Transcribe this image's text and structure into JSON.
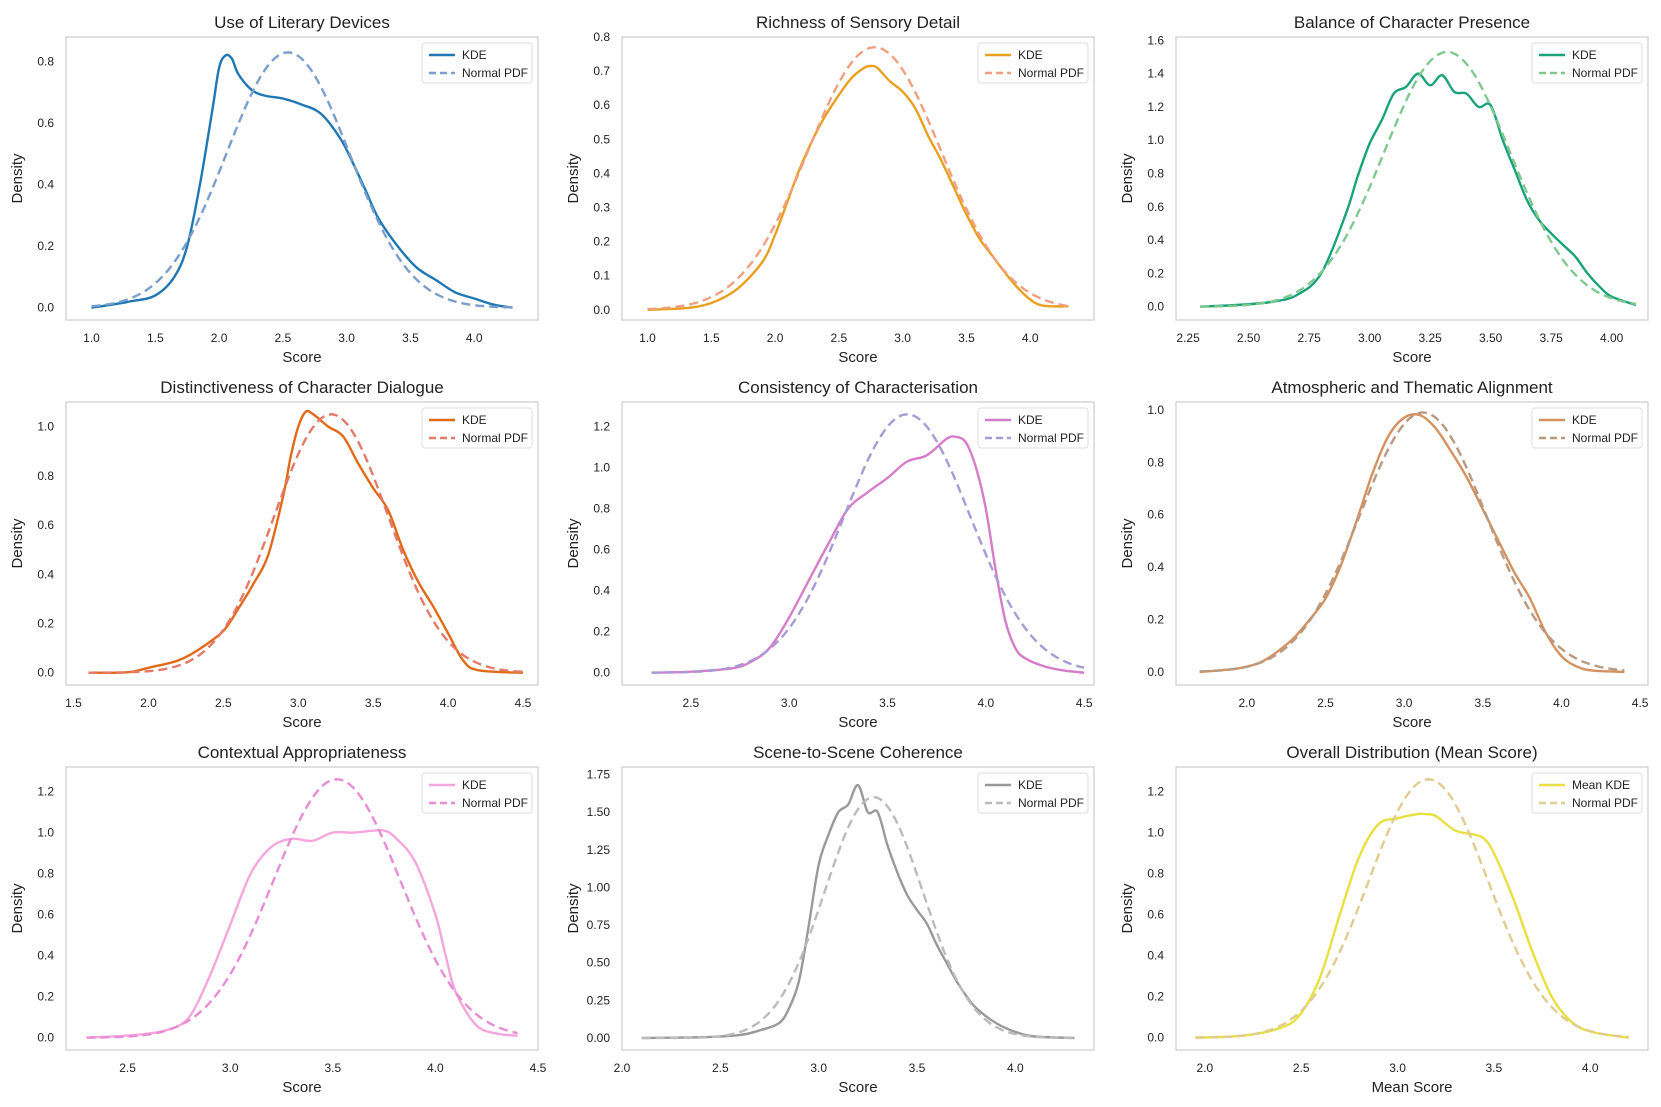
{
  "figure": {
    "xlabel": "Score"
  },
  "chart_data": [
    {
      "type": "line",
      "title": "Use of Literary Devices",
      "xlabel": "Score",
      "ylabel": "Density",
      "xlim": [
        0.8,
        4.5
      ],
      "ylim": [
        -0.04,
        0.88
      ],
      "xticks": [
        1.0,
        1.5,
        2.0,
        2.5,
        3.0,
        3.5,
        4.0
      ],
      "xtick_labels": [
        "1.0",
        "1.5",
        "2.0",
        "2.5",
        "3.0",
        "3.5",
        "4.0"
      ],
      "yticks": [
        0,
        0.2,
        0.4,
        0.6,
        0.8
      ],
      "ytick_labels": [
        "0.0",
        "0.2",
        "0.4",
        "0.6",
        "0.8"
      ],
      "series": [
        {
          "name": "KDE",
          "style": "solid",
          "color": "#1f77b4",
          "x": [
            1.0,
            1.3,
            1.5,
            1.65,
            1.75,
            1.85,
            1.95,
            2.0,
            2.05,
            2.1,
            2.15,
            2.25,
            2.35,
            2.5,
            2.65,
            2.8,
            2.95,
            3.05,
            3.15,
            3.25,
            3.4,
            3.55,
            3.7,
            3.85,
            4.0,
            4.15,
            4.3
          ],
          "y": [
            0.0,
            0.02,
            0.04,
            0.1,
            0.2,
            0.4,
            0.65,
            0.78,
            0.82,
            0.81,
            0.76,
            0.71,
            0.69,
            0.68,
            0.66,
            0.63,
            0.55,
            0.47,
            0.38,
            0.29,
            0.2,
            0.13,
            0.09,
            0.05,
            0.03,
            0.01,
            0.0
          ]
        },
        {
          "name": "Normal PDF",
          "style": "dashed",
          "color": "#7b9fcc",
          "mu": 2.54,
          "sigma": 0.48,
          "peak": 0.83,
          "xrange": [
            1.0,
            4.3
          ]
        }
      ]
    },
    {
      "type": "line",
      "title": "Richness of Sensory Detail",
      "xlabel": "Score",
      "ylabel": "Density",
      "xlim": [
        0.8,
        4.5
      ],
      "ylim": [
        -0.03,
        0.8
      ],
      "xticks": [
        1.0,
        1.5,
        2.0,
        2.5,
        3.0,
        3.5,
        4.0
      ],
      "xtick_labels": [
        "1.0",
        "1.5",
        "2.0",
        "2.5",
        "3.0",
        "3.5",
        "4.0"
      ],
      "yticks": [
        0,
        0.1,
        0.2,
        0.3,
        0.4,
        0.5,
        0.6,
        0.7,
        0.8
      ],
      "ytick_labels": [
        "0.0",
        "0.1",
        "0.2",
        "0.3",
        "0.4",
        "0.5",
        "0.6",
        "0.7",
        "0.8"
      ],
      "series": [
        {
          "name": "KDE",
          "style": "solid",
          "color": "#e8a020",
          "x": [
            1.0,
            1.3,
            1.5,
            1.7,
            1.9,
            2.0,
            2.1,
            2.2,
            2.35,
            2.5,
            2.6,
            2.7,
            2.75,
            2.8,
            2.9,
            3.0,
            3.1,
            3.2,
            3.3,
            3.4,
            3.5,
            3.6,
            3.7,
            3.8,
            3.9,
            4.0,
            4.1,
            4.3
          ],
          "y": [
            0.0,
            0.005,
            0.02,
            0.06,
            0.14,
            0.22,
            0.32,
            0.42,
            0.54,
            0.63,
            0.68,
            0.71,
            0.715,
            0.71,
            0.67,
            0.64,
            0.59,
            0.51,
            0.44,
            0.36,
            0.28,
            0.21,
            0.16,
            0.11,
            0.065,
            0.03,
            0.012,
            0.01
          ]
        },
        {
          "name": "Normal PDF",
          "style": "dashed",
          "color": "#f0a080",
          "mu": 2.78,
          "sigma": 0.52,
          "peak": 0.77,
          "xrange": [
            1.0,
            4.3
          ]
        }
      ]
    },
    {
      "type": "line",
      "title": "Balance of Character Presence",
      "xlabel": "Score",
      "ylabel": "Density",
      "xlim": [
        2.2,
        4.15
      ],
      "ylim": [
        -0.08,
        1.62
      ],
      "xticks": [
        2.25,
        2.5,
        2.75,
        3.0,
        3.25,
        3.5,
        3.75,
        4.0
      ],
      "xtick_labels": [
        "2.25",
        "2.50",
        "2.75",
        "3.00",
        "3.25",
        "3.50",
        "3.75",
        "4.00"
      ],
      "yticks": [
        0,
        0.2,
        0.4,
        0.6,
        0.8,
        1.0,
        1.2,
        1.4,
        1.6
      ],
      "ytick_labels": [
        "0.0",
        "0.2",
        "0.4",
        "0.6",
        "0.8",
        "1.0",
        "1.2",
        "1.4",
        "1.6"
      ],
      "series": [
        {
          "name": "KDE",
          "style": "solid",
          "color": "#1aa37a",
          "x": [
            2.3,
            2.45,
            2.6,
            2.7,
            2.8,
            2.9,
            2.95,
            3.0,
            3.05,
            3.1,
            3.15,
            3.2,
            3.25,
            3.3,
            3.35,
            3.4,
            3.45,
            3.5,
            3.55,
            3.6,
            3.65,
            3.7,
            3.75,
            3.8,
            3.85,
            3.9,
            3.95,
            4.0,
            4.1
          ],
          "y": [
            0.0,
            0.01,
            0.03,
            0.07,
            0.2,
            0.55,
            0.78,
            0.98,
            1.12,
            1.28,
            1.32,
            1.4,
            1.33,
            1.39,
            1.29,
            1.28,
            1.2,
            1.21,
            1.0,
            0.82,
            0.64,
            0.52,
            0.44,
            0.37,
            0.3,
            0.2,
            0.12,
            0.06,
            0.01
          ]
        },
        {
          "name": "Normal PDF",
          "style": "dashed",
          "color": "#80c890",
          "mu": 3.32,
          "sigma": 0.26,
          "peak": 1.53,
          "xrange": [
            2.3,
            4.1
          ]
        }
      ]
    },
    {
      "type": "line",
      "title": "Distinctiveness of Character Dialogue",
      "xlabel": "Score",
      "ylabel": "Density",
      "xlim": [
        1.45,
        4.6
      ],
      "ylim": [
        -0.05,
        1.1
      ],
      "xticks": [
        1.5,
        2.0,
        2.5,
        3.0,
        3.5,
        4.0,
        4.5
      ],
      "xtick_labels": [
        "1.5",
        "2.0",
        "2.5",
        "3.0",
        "3.5",
        "4.0",
        "4.5"
      ],
      "yticks": [
        0,
        0.2,
        0.4,
        0.6,
        0.8,
        1.0
      ],
      "ytick_labels": [
        "0.0",
        "0.2",
        "0.4",
        "0.6",
        "0.8",
        "1.0"
      ],
      "series": [
        {
          "name": "KDE",
          "style": "solid",
          "color": "#e06a18",
          "x": [
            1.6,
            1.8,
            1.9,
            2.0,
            2.2,
            2.35,
            2.5,
            2.6,
            2.7,
            2.8,
            2.9,
            2.95,
            3.0,
            3.05,
            3.1,
            3.2,
            3.3,
            3.4,
            3.5,
            3.6,
            3.7,
            3.8,
            3.9,
            4.0,
            4.1,
            4.2,
            4.5
          ],
          "y": [
            0.0,
            0.0,
            0.005,
            0.02,
            0.05,
            0.1,
            0.17,
            0.26,
            0.36,
            0.48,
            0.72,
            0.88,
            1.0,
            1.06,
            1.05,
            1.0,
            0.96,
            0.85,
            0.75,
            0.66,
            0.5,
            0.37,
            0.27,
            0.16,
            0.05,
            0.01,
            0.0
          ]
        },
        {
          "name": "Normal PDF",
          "style": "dashed",
          "color": "#e37a6a",
          "mu": 3.22,
          "sigma": 0.38,
          "peak": 1.05,
          "xrange": [
            1.6,
            4.5
          ]
        }
      ]
    },
    {
      "type": "line",
      "title": "Consistency of Characterisation",
      "xlabel": "Score",
      "ylabel": "Density",
      "xlim": [
        2.15,
        4.55
      ],
      "ylim": [
        -0.06,
        1.32
      ],
      "xticks": [
        2.5,
        3.0,
        3.5,
        4.0,
        4.5
      ],
      "xtick_labels": [
        "2.5",
        "3.0",
        "3.5",
        "4.0",
        "4.5"
      ],
      "yticks": [
        0,
        0.2,
        0.4,
        0.6,
        0.8,
        1.0,
        1.2
      ],
      "ytick_labels": [
        "0.0",
        "0.2",
        "0.4",
        "0.6",
        "0.8",
        "1.0",
        "1.2"
      ],
      "series": [
        {
          "name": "KDE",
          "style": "solid",
          "color": "#d67cc8",
          "x": [
            2.3,
            2.5,
            2.7,
            2.8,
            2.9,
            3.0,
            3.1,
            3.2,
            3.3,
            3.4,
            3.5,
            3.6,
            3.7,
            3.8,
            3.85,
            3.9,
            3.95,
            4.0,
            4.05,
            4.1,
            4.15,
            4.2,
            4.3,
            4.4,
            4.5
          ],
          "y": [
            0.0,
            0.005,
            0.02,
            0.05,
            0.12,
            0.27,
            0.45,
            0.63,
            0.8,
            0.88,
            0.95,
            1.03,
            1.06,
            1.14,
            1.15,
            1.12,
            1.0,
            0.8,
            0.5,
            0.25,
            0.12,
            0.07,
            0.03,
            0.01,
            0.0
          ]
        },
        {
          "name": "Normal PDF",
          "style": "dashed",
          "color": "#a89ad4",
          "mu": 3.6,
          "sigma": 0.32,
          "peak": 1.26,
          "xrange": [
            2.3,
            4.5
          ]
        }
      ]
    },
    {
      "type": "line",
      "title": "Atmospheric and Thematic Alignment",
      "xlabel": "Score",
      "ylabel": "Density",
      "xlim": [
        1.55,
        4.55
      ],
      "ylim": [
        -0.05,
        1.03
      ],
      "xticks": [
        2.0,
        2.5,
        3.0,
        3.5,
        4.0,
        4.5
      ],
      "xtick_labels": [
        "2.0",
        "2.5",
        "3.0",
        "3.5",
        "4.0",
        "4.5"
      ],
      "yticks": [
        0,
        0.2,
        0.4,
        0.6,
        0.8,
        1.0
      ],
      "ytick_labels": [
        "0.0",
        "0.2",
        "0.4",
        "0.6",
        "0.8",
        "1.0"
      ],
      "series": [
        {
          "name": "KDE",
          "style": "solid",
          "color": "#d49260",
          "x": [
            1.7,
            1.9,
            2.0,
            2.1,
            2.2,
            2.3,
            2.4,
            2.5,
            2.6,
            2.7,
            2.8,
            2.9,
            3.0,
            3.1,
            3.2,
            3.3,
            3.4,
            3.5,
            3.6,
            3.7,
            3.8,
            3.9,
            4.0,
            4.1,
            4.2,
            4.4
          ],
          "y": [
            0.0,
            0.01,
            0.02,
            0.04,
            0.08,
            0.13,
            0.2,
            0.28,
            0.41,
            0.58,
            0.76,
            0.9,
            0.97,
            0.98,
            0.93,
            0.84,
            0.74,
            0.62,
            0.5,
            0.38,
            0.28,
            0.15,
            0.06,
            0.02,
            0.005,
            0.0
          ]
        },
        {
          "name": "Normal PDF",
          "style": "dashed",
          "color": "#b89a80",
          "mu": 3.12,
          "sigma": 0.4,
          "peak": 0.99,
          "xrange": [
            1.7,
            4.4
          ]
        }
      ]
    },
    {
      "type": "line",
      "title": "Contextual Appropriateness",
      "xlabel": "Score",
      "ylabel": "Density",
      "xlim": [
        2.2,
        4.5
      ],
      "ylim": [
        -0.06,
        1.32
      ],
      "xticks": [
        2.5,
        3.0,
        3.5,
        4.0,
        4.5
      ],
      "xtick_labels": [
        "2.5",
        "3.0",
        "3.5",
        "4.0",
        "4.5"
      ],
      "yticks": [
        0,
        0.2,
        0.4,
        0.6,
        0.8,
        1.0,
        1.2
      ],
      "ytick_labels": [
        "0.0",
        "0.2",
        "0.4",
        "0.6",
        "0.8",
        "1.0",
        "1.2"
      ],
      "series": [
        {
          "name": "KDE",
          "style": "solid",
          "color": "#f5a6dc",
          "x": [
            2.3,
            2.5,
            2.6,
            2.7,
            2.8,
            2.9,
            3.0,
            3.1,
            3.2,
            3.3,
            3.4,
            3.5,
            3.6,
            3.7,
            3.75,
            3.8,
            3.9,
            4.0,
            4.05,
            4.1,
            4.2,
            4.3,
            4.4
          ],
          "y": [
            0.0,
            0.01,
            0.02,
            0.04,
            0.1,
            0.3,
            0.55,
            0.8,
            0.93,
            0.97,
            0.96,
            1.0,
            1.0,
            1.01,
            1.01,
            0.98,
            0.86,
            0.6,
            0.4,
            0.22,
            0.06,
            0.02,
            0.01
          ]
        },
        {
          "name": "Normal PDF",
          "style": "dashed",
          "color": "#e88cd4",
          "mu": 3.52,
          "sigma": 0.31,
          "peak": 1.26,
          "xrange": [
            2.3,
            4.4
          ]
        }
      ]
    },
    {
      "type": "line",
      "title": "Scene-to-Scene Coherence",
      "xlabel": "Score",
      "ylabel": "Density",
      "xlim": [
        2.0,
        4.4
      ],
      "ylim": [
        -0.08,
        1.8
      ],
      "xticks": [
        2.0,
        2.5,
        3.0,
        3.5,
        4.0
      ],
      "xtick_labels": [
        "2.0",
        "2.5",
        "3.0",
        "3.5",
        "4.0"
      ],
      "yticks": [
        0,
        0.25,
        0.5,
        0.75,
        1.0,
        1.25,
        1.5,
        1.75
      ],
      "ytick_labels": [
        "0.00",
        "0.25",
        "0.50",
        "0.75",
        "1.00",
        "1.25",
        "1.50",
        "1.75"
      ],
      "series": [
        {
          "name": "KDE",
          "style": "solid",
          "color": "#999999",
          "x": [
            2.1,
            2.4,
            2.6,
            2.7,
            2.8,
            2.85,
            2.9,
            2.95,
            3.0,
            3.05,
            3.1,
            3.15,
            3.2,
            3.25,
            3.3,
            3.35,
            3.4,
            3.45,
            3.5,
            3.55,
            3.6,
            3.65,
            3.7,
            3.75,
            3.8,
            3.9,
            4.0,
            4.1,
            4.3
          ],
          "y": [
            0.0,
            0.005,
            0.02,
            0.05,
            0.1,
            0.2,
            0.38,
            0.75,
            1.15,
            1.35,
            1.5,
            1.55,
            1.68,
            1.5,
            1.5,
            1.28,
            1.1,
            0.95,
            0.85,
            0.76,
            0.62,
            0.5,
            0.38,
            0.28,
            0.2,
            0.1,
            0.04,
            0.01,
            0.0
          ]
        },
        {
          "name": "Normal PDF",
          "style": "dashed",
          "color": "#bbbbbb",
          "mu": 3.28,
          "sigma": 0.25,
          "peak": 1.6,
          "xrange": [
            2.1,
            4.3
          ]
        }
      ]
    },
    {
      "type": "line",
      "title": "Overall Distribution (Mean Score)",
      "xlabel": "Mean Score",
      "ylabel": "Density",
      "xlim": [
        1.85,
        4.3
      ],
      "ylim": [
        -0.06,
        1.32
      ],
      "xticks": [
        2.0,
        2.5,
        3.0,
        3.5,
        4.0
      ],
      "xtick_labels": [
        "2.0",
        "2.5",
        "3.0",
        "3.5",
        "4.0"
      ],
      "yticks": [
        0,
        0.2,
        0.4,
        0.6,
        0.8,
        1.0,
        1.2
      ],
      "ytick_labels": [
        "0.0",
        "0.2",
        "0.4",
        "0.6",
        "0.8",
        "1.0",
        "1.2"
      ],
      "series": [
        {
          "name": "Mean KDE",
          "style": "solid",
          "color": "#e8e040",
          "x": [
            1.95,
            2.2,
            2.4,
            2.5,
            2.6,
            2.7,
            2.8,
            2.9,
            3.0,
            3.1,
            3.15,
            3.2,
            3.3,
            3.4,
            3.45,
            3.5,
            3.6,
            3.7,
            3.8,
            3.9,
            4.0,
            4.2
          ],
          "y": [
            0.0,
            0.01,
            0.05,
            0.12,
            0.3,
            0.6,
            0.88,
            1.04,
            1.07,
            1.09,
            1.09,
            1.08,
            1.01,
            0.99,
            0.97,
            0.9,
            0.68,
            0.42,
            0.2,
            0.08,
            0.03,
            0.0
          ]
        },
        {
          "name": "Normal PDF",
          "style": "dashed",
          "color": "#e0cc90",
          "mu": 3.16,
          "sigma": 0.31,
          "peak": 1.26,
          "xrange": [
            1.95,
            4.2
          ]
        }
      ]
    }
  ]
}
